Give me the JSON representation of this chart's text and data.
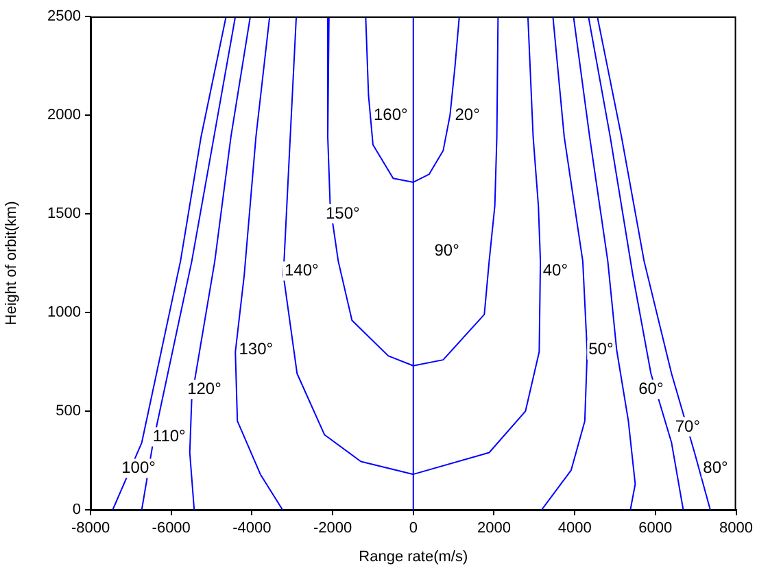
{
  "chart_data": {
    "type": "line",
    "xlabel": "Range rate(m/s)",
    "ylabel": "Height of orbit(km)",
    "xlim": [
      -8000,
      8000
    ],
    "xticks": [
      -8000,
      -6000,
      -4000,
      -2000,
      0,
      2000,
      4000,
      6000,
      8000
    ],
    "ylim": [
      0,
      2500
    ],
    "yticks": [
      0,
      500,
      1000,
      1500,
      2000,
      2500
    ],
    "grid": false,
    "legend": false,
    "marker": "none",
    "line_style": "solid",
    "series": [
      {
        "color": "#0000ff",
        "x": [
          -7450,
          -6730,
          -5770,
          -5260,
          -4640
        ],
        "values": [
          0,
          340,
          1260,
          1890,
          2500
        ]
      },
      {
        "color": "#0000ff",
        "x": [
          -6730,
          -6450,
          -5490,
          -4940,
          -4410
        ],
        "values": [
          0,
          340,
          1260,
          1890,
          2500
        ]
      },
      {
        "color": "#0000ff",
        "x": [
          -5430,
          -5540,
          -5490,
          -4920,
          -4520,
          -4040
        ],
        "values": [
          0,
          290,
          570,
          1260,
          1890,
          2500
        ]
      },
      {
        "color": "#0000ff",
        "x": [
          -3240,
          -3790,
          -4360,
          -4410,
          -4190,
          -3900,
          -3560
        ],
        "values": [
          0,
          180,
          450,
          800,
          1190,
          1890,
          2500
        ]
      },
      {
        "color": "#0000ff",
        "x": [
          -2900,
          -3050,
          -3220,
          -2880,
          -2200,
          -1300,
          0,
          1880,
          2780,
          3120,
          3150,
          3100,
          2970,
          2840
        ],
        "values": [
          2500,
          1890,
          1190,
          690,
          380,
          245,
          180,
          290,
          500,
          800,
          1260,
          1540,
          1890,
          2500
        ]
      },
      {
        "color": "#0000ff",
        "x": [
          -2090,
          -2120,
          -2060,
          -1860,
          -1520,
          -620,
          0,
          740,
          1760,
          1880,
          2020,
          2070,
          2100
        ],
        "values": [
          2500,
          1890,
          1540,
          1260,
          960,
          780,
          730,
          760,
          990,
          1260,
          1540,
          1890,
          2500
        ]
      },
      {
        "color": "#0000ff",
        "x": [
          -1180,
          -1110,
          -1000,
          -500,
          0,
          390,
          740,
          910,
          1030,
          1140
        ],
        "values": [
          2500,
          2100,
          1850,
          1680,
          1660,
          1700,
          1820,
          2000,
          2240,
          2500
        ]
      },
      {
        "color": "#0000ff",
        "x": [
          0,
          0
        ],
        "values": [
          0,
          2500
        ]
      },
      {
        "color": "#0000ff",
        "x": [
          3180,
          3910,
          4250,
          4310,
          4200,
          3740,
          3460
        ],
        "values": [
          0,
          200,
          450,
          800,
          1260,
          1890,
          2500
        ]
      },
      {
        "color": "#0000ff",
        "x": [
          5380,
          5500,
          5330,
          5040,
          4820,
          4370,
          3970
        ],
        "values": [
          0,
          130,
          450,
          810,
          1260,
          1890,
          2500
        ]
      },
      {
        "color": "#0000ff",
        "x": [
          6690,
          6400,
          5890,
          5440,
          4880,
          4340
        ],
        "values": [
          0,
          340,
          690,
          1190,
          1890,
          2500
        ]
      },
      {
        "color": "#0000ff",
        "x": [
          7360,
          6970,
          6400,
          5720,
          5160,
          4560
        ],
        "values": [
          0,
          290,
          690,
          1260,
          1890,
          2500
        ]
      }
    ],
    "annotations": [
      {
        "text": "160°",
        "x": -560,
        "y": 2000
      },
      {
        "text": "20°",
        "x": 1340,
        "y": 2000
      },
      {
        "text": "150°",
        "x": -1750,
        "y": 1500
      },
      {
        "text": "90°",
        "x": 830,
        "y": 1310
      },
      {
        "text": "140°",
        "x": -2770,
        "y": 1210
      },
      {
        "text": "40°",
        "x": 3520,
        "y": 1210
      },
      {
        "text": "130°",
        "x": -3900,
        "y": 810
      },
      {
        "text": "50°",
        "x": 4650,
        "y": 810
      },
      {
        "text": "120°",
        "x": -5180,
        "y": 610
      },
      {
        "text": "60°",
        "x": 5890,
        "y": 610
      },
      {
        "text": "110°",
        "x": -6050,
        "y": 370
      },
      {
        "text": "70°",
        "x": 6800,
        "y": 420
      },
      {
        "text": "100°",
        "x": -6810,
        "y": 210
      },
      {
        "text": "80°",
        "x": 7490,
        "y": 210
      }
    ]
  }
}
